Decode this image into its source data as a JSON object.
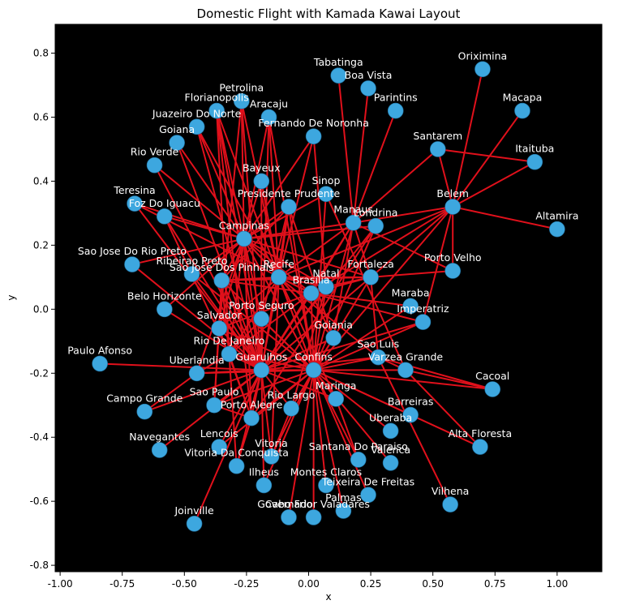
{
  "chart_data": {
    "type": "network",
    "title": "Domestic Flight with Kamada Kawai Layout",
    "xlabel": "x",
    "ylabel": "y",
    "xlim": [
      -1.02,
      1.18
    ],
    "ylim": [
      -0.82,
      0.89
    ],
    "xticks": [
      "-1.00",
      "-0.75",
      "-0.50",
      "-0.25",
      "0.00",
      "0.25",
      "0.50",
      "0.75",
      "1.00"
    ],
    "yticks": [
      "0.8",
      "0.6",
      "0.4",
      "0.2",
      "0.0",
      "-0.2",
      "-0.4",
      "-0.6",
      "-0.8"
    ],
    "xtick_values": [
      -1.0,
      -0.75,
      -0.5,
      -0.25,
      0.0,
      0.25,
      0.5,
      0.75,
      1.0
    ],
    "ytick_values": [
      0.8,
      0.6,
      0.4,
      0.2,
      0.0,
      -0.2,
      -0.4,
      -0.6,
      -0.8
    ],
    "background_color": "#000000",
    "node_color": "#3da7df",
    "edge_color": "#e0101b",
    "label_color": "#ffffff",
    "nodes": [
      {
        "name": "Oriximina",
        "x": 0.7,
        "y": 0.75
      },
      {
        "name": "Tabatinga",
        "x": 0.12,
        "y": 0.73
      },
      {
        "name": "Boa Vista",
        "x": 0.24,
        "y": 0.69
      },
      {
        "name": "Macapa",
        "x": 0.86,
        "y": 0.62
      },
      {
        "name": "Parintins",
        "x": 0.35,
        "y": 0.62
      },
      {
        "name": "Petrolina",
        "x": -0.27,
        "y": 0.65
      },
      {
        "name": "Florianopolis",
        "x": -0.37,
        "y": 0.62
      },
      {
        "name": "Aracaju",
        "x": -0.16,
        "y": 0.6
      },
      {
        "name": "Juazeiro Do Norte",
        "x": -0.45,
        "y": 0.57
      },
      {
        "name": "Fernando De Noronha",
        "x": 0.02,
        "y": 0.54
      },
      {
        "name": "Goiana",
        "x": -0.53,
        "y": 0.52
      },
      {
        "name": "Santarem",
        "x": 0.52,
        "y": 0.5
      },
      {
        "name": "Rio Verde",
        "x": -0.62,
        "y": 0.45
      },
      {
        "name": "Itaituba",
        "x": 0.91,
        "y": 0.46
      },
      {
        "name": "Bayeux",
        "x": -0.19,
        "y": 0.4
      },
      {
        "name": "Sinop",
        "x": 0.07,
        "y": 0.36
      },
      {
        "name": "Teresina",
        "x": -0.7,
        "y": 0.33
      },
      {
        "name": "Belem",
        "x": 0.58,
        "y": 0.32
      },
      {
        "name": "Presidente Prudente",
        "x": -0.08,
        "y": 0.32
      },
      {
        "name": "Foz Do Iguacu",
        "x": -0.58,
        "y": 0.29
      },
      {
        "name": "Manaus",
        "x": 0.18,
        "y": 0.27
      },
      {
        "name": "Londrina",
        "x": 0.27,
        "y": 0.26
      },
      {
        "name": "Altamira",
        "x": 1.0,
        "y": 0.25
      },
      {
        "name": "Campinas",
        "x": -0.26,
        "y": 0.22
      },
      {
        "name": "Sao Jose Do Rio Preto",
        "x": -0.71,
        "y": 0.14
      },
      {
        "name": "Ribeirao Preto",
        "x": -0.47,
        "y": 0.11
      },
      {
        "name": "Porto Velho",
        "x": 0.58,
        "y": 0.12
      },
      {
        "name": "Sao Jose Dos Pinhais",
        "x": -0.35,
        "y": 0.09
      },
      {
        "name": "Recife",
        "x": -0.12,
        "y": 0.1
      },
      {
        "name": "Fortaleza",
        "x": 0.25,
        "y": 0.1
      },
      {
        "name": "Natal",
        "x": 0.07,
        "y": 0.07
      },
      {
        "name": "Brasilia",
        "x": 0.01,
        "y": 0.05
      },
      {
        "name": "Belo Horizonte",
        "x": -0.58,
        "y": 0.0
      },
      {
        "name": "Maraba",
        "x": 0.41,
        "y": 0.01
      },
      {
        "name": "Porto Seguro",
        "x": -0.19,
        "y": -0.03
      },
      {
        "name": "Imperatriz",
        "x": 0.46,
        "y": -0.04
      },
      {
        "name": "Salvador",
        "x": -0.36,
        "y": -0.06
      },
      {
        "name": "Goiania",
        "x": 0.1,
        "y": -0.09
      },
      {
        "name": "Rio De Janeiro",
        "x": -0.32,
        "y": -0.14
      },
      {
        "name": "Sao Luis",
        "x": 0.28,
        "y": -0.15
      },
      {
        "name": "Paulo Afonso",
        "x": -0.84,
        "y": -0.17
      },
      {
        "name": "Guarulhos",
        "x": -0.19,
        "y": -0.19
      },
      {
        "name": "Confins",
        "x": 0.02,
        "y": -0.19
      },
      {
        "name": "Varzea Grande",
        "x": 0.39,
        "y": -0.19
      },
      {
        "name": "Uberlandia",
        "x": -0.45,
        "y": -0.2
      },
      {
        "name": "Cacoal",
        "x": 0.74,
        "y": -0.25
      },
      {
        "name": "Maringa",
        "x": 0.11,
        "y": -0.28
      },
      {
        "name": "Sao Paulo",
        "x": -0.38,
        "y": -0.3
      },
      {
        "name": "Rio Largo",
        "x": -0.07,
        "y": -0.31
      },
      {
        "name": "Campo Grande",
        "x": -0.66,
        "y": -0.32
      },
      {
        "name": "Barreiras",
        "x": 0.41,
        "y": -0.33
      },
      {
        "name": "Porto Alegre",
        "x": -0.23,
        "y": -0.34
      },
      {
        "name": "Uberaba",
        "x": 0.33,
        "y": -0.38
      },
      {
        "name": "Lencois",
        "x": -0.36,
        "y": -0.43
      },
      {
        "name": "Alta Floresta",
        "x": 0.69,
        "y": -0.43
      },
      {
        "name": "Navegantes",
        "x": -0.6,
        "y": -0.44
      },
      {
        "name": "Vitoria",
        "x": -0.15,
        "y": -0.46
      },
      {
        "name": "Santana Do Paraiso",
        "x": 0.2,
        "y": -0.47
      },
      {
        "name": "Valenca",
        "x": 0.33,
        "y": -0.48
      },
      {
        "name": "Vitoria Da Conquista",
        "x": -0.29,
        "y": -0.49
      },
      {
        "name": "Ilheus",
        "x": -0.18,
        "y": -0.55
      },
      {
        "name": "Montes Claros",
        "x": 0.07,
        "y": -0.55
      },
      {
        "name": "Teixeira De Freitas",
        "x": 0.24,
        "y": -0.58
      },
      {
        "name": "Vilhena",
        "x": 0.57,
        "y": -0.61
      },
      {
        "name": "Palmas",
        "x": 0.14,
        "y": -0.63
      },
      {
        "name": "Cabo Frio",
        "x": -0.08,
        "y": -0.65
      },
      {
        "name": "Governador Valadares",
        "x": 0.02,
        "y": -0.65
      },
      {
        "name": "Joinville",
        "x": -0.46,
        "y": -0.67
      }
    ],
    "edges": [
      [
        "Oriximina",
        "Belem"
      ],
      [
        "Macapa",
        "Belem"
      ],
      [
        "Santarem",
        "Itaituba"
      ],
      [
        "Santarem",
        "Belem"
      ],
      [
        "Itaituba",
        "Belem"
      ],
      [
        "Altamira",
        "Belem"
      ],
      [
        "Belem",
        "Manaus"
      ],
      [
        "Belem",
        "Brasilia"
      ],
      [
        "Belem",
        "Fortaleza"
      ],
      [
        "Belem",
        "Imperatriz"
      ],
      [
        "Belem",
        "Porto Velho"
      ],
      [
        "Belem",
        "Confins"
      ],
      [
        "Belem",
        "Recife"
      ],
      [
        "Santarem",
        "Manaus"
      ],
      [
        "Tabatinga",
        "Manaus"
      ],
      [
        "Boa Vista",
        "Manaus"
      ],
      [
        "Parintins",
        "Manaus"
      ],
      [
        "Manaus",
        "Brasilia"
      ],
      [
        "Manaus",
        "Guarulhos"
      ],
      [
        "Manaus",
        "Campinas"
      ],
      [
        "Manaus",
        "Porto Velho"
      ],
      [
        "Manaus",
        "Fortaleza"
      ],
      [
        "Manaus",
        "Recife"
      ],
      [
        "Manaus",
        "Confins"
      ],
      [
        "Manaus",
        "Goiania"
      ],
      [
        "Londrina",
        "Campinas"
      ],
      [
        "Londrina",
        "Guarulhos"
      ],
      [
        "Londrina",
        "Porto Alegre"
      ],
      [
        "Londrina",
        "Confins"
      ],
      [
        "Petrolina",
        "Campinas"
      ],
      [
        "Petrolina",
        "Recife"
      ],
      [
        "Petrolina",
        "Guarulhos"
      ],
      [
        "Petrolina",
        "Salvador"
      ],
      [
        "Florianopolis",
        "Campinas"
      ],
      [
        "Florianopolis",
        "Guarulhos"
      ],
      [
        "Florianopolis",
        "Porto Alegre"
      ],
      [
        "Florianopolis",
        "Rio De Janeiro"
      ],
      [
        "Florianopolis",
        "Confins"
      ],
      [
        "Aracaju",
        "Recife"
      ],
      [
        "Aracaju",
        "Guarulhos"
      ],
      [
        "Aracaju",
        "Campinas"
      ],
      [
        "Aracaju",
        "Confins"
      ],
      [
        "Juazeiro Do Norte",
        "Campinas"
      ],
      [
        "Juazeiro Do Norte",
        "Recife"
      ],
      [
        "Juazeiro Do Norte",
        "Guarulhos"
      ],
      [
        "Fernando De Noronha",
        "Recife"
      ],
      [
        "Fernando De Noronha",
        "Natal"
      ],
      [
        "Fernando De Noronha",
        "Campinas"
      ],
      [
        "Goiana",
        "Campinas"
      ],
      [
        "Goiana",
        "Guarulhos"
      ],
      [
        "Rio Verde",
        "Campinas"
      ],
      [
        "Rio Verde",
        "Guarulhos"
      ],
      [
        "Bayeux",
        "Campinas"
      ],
      [
        "Bayeux",
        "Guarulhos"
      ],
      [
        "Bayeux",
        "Recife"
      ],
      [
        "Sinop",
        "Campinas"
      ],
      [
        "Sinop",
        "Confins"
      ],
      [
        "Sinop",
        "Varzea Grande"
      ],
      [
        "Teresina",
        "Campinas"
      ],
      [
        "Teresina",
        "Guarulhos"
      ],
      [
        "Teresina",
        "Brasilia"
      ],
      [
        "Presidente Prudente",
        "Campinas"
      ],
      [
        "Presidente Prudente",
        "Guarulhos"
      ],
      [
        "Presidente Prudente",
        "Confins"
      ],
      [
        "Presidente Prudente",
        "Recife"
      ],
      [
        "Presidente Prudente",
        "Goiania"
      ],
      [
        "Presidente Prudente",
        "Sao Jose Dos Pinhais"
      ],
      [
        "Presidente Prudente",
        "Porto Seguro"
      ],
      [
        "Foz Do Iguacu",
        "Campinas"
      ],
      [
        "Foz Do Iguacu",
        "Guarulhos"
      ],
      [
        "Foz Do Iguacu",
        "Rio De Janeiro"
      ],
      [
        "Campinas",
        "Sao Jose Do Rio Preto"
      ],
      [
        "Campinas",
        "Ribeirao Preto"
      ],
      [
        "Campinas",
        "Recife"
      ],
      [
        "Campinas",
        "Brasilia"
      ],
      [
        "Campinas",
        "Confins"
      ],
      [
        "Campinas",
        "Salvador"
      ],
      [
        "Campinas",
        "Rio De Janeiro"
      ],
      [
        "Campinas",
        "Porto Alegre"
      ],
      [
        "Campinas",
        "Natal"
      ],
      [
        "Campinas",
        "Fortaleza"
      ],
      [
        "Campinas",
        "Goiania"
      ],
      [
        "Campinas",
        "Belo Horizonte"
      ],
      [
        "Campinas",
        "Uberlandia"
      ],
      [
        "Campinas",
        "Sao Jose Dos Pinhais"
      ],
      [
        "Campinas",
        "Porto Seguro"
      ],
      [
        "Campinas",
        "Guarulhos"
      ],
      [
        "Sao Jose Do Rio Preto",
        "Guarulhos"
      ],
      [
        "Ribeirao Preto",
        "Guarulhos"
      ],
      [
        "Ribeirao Preto",
        "Confins"
      ],
      [
        "Sao Jose Dos Pinhais",
        "Recife"
      ],
      [
        "Sao Jose Dos Pinhais",
        "Fortaleza"
      ],
      [
        "Sao Jose Dos Pinhais",
        "Brasilia"
      ],
      [
        "Sao Jose Dos Pinhais",
        "Confins"
      ],
      [
        "Sao Jose Dos Pinhais",
        "Guarulhos"
      ],
      [
        "Sao Jose Dos Pinhais",
        "Rio De Janeiro"
      ],
      [
        "Sao Jose Dos Pinhais",
        "Salvador"
      ],
      [
        "Sao Jose Dos Pinhais",
        "Sao Paulo"
      ],
      [
        "Recife",
        "Brasilia"
      ],
      [
        "Recife",
        "Confins"
      ],
      [
        "Recife",
        "Guarulhos"
      ],
      [
        "Recife",
        "Natal"
      ],
      [
        "Recife",
        "Fortaleza"
      ],
      [
        "Recife",
        "Salvador"
      ],
      [
        "Recife",
        "Rio De Janeiro"
      ],
      [
        "Recife",
        "Goiania"
      ],
      [
        "Recife",
        "Sao Luis"
      ],
      [
        "Recife",
        "Maringa"
      ],
      [
        "Recife",
        "Vitoria"
      ],
      [
        "Fortaleza",
        "Brasilia"
      ],
      [
        "Fortaleza",
        "Confins"
      ],
      [
        "Fortaleza",
        "Guarulhos"
      ],
      [
        "Fortaleza",
        "Natal"
      ],
      [
        "Fortaleza",
        "Sao Luis"
      ],
      [
        "Fortaleza",
        "Porto Velho"
      ],
      [
        "Natal",
        "Confins"
      ],
      [
        "Natal",
        "Guarulhos"
      ],
      [
        "Natal",
        "Brasilia"
      ],
      [
        "Natal",
        "Rio Largo"
      ],
      [
        "Brasilia",
        "Confins"
      ],
      [
        "Brasilia",
        "Guarulhos"
      ],
      [
        "Brasilia",
        "Goiania"
      ],
      [
        "Brasilia",
        "Maraba"
      ],
      [
        "Brasilia",
        "Imperatriz"
      ],
      [
        "Brasilia",
        "Salvador"
      ],
      [
        "Brasilia",
        "Rio De Janeiro"
      ],
      [
        "Belo Horizonte",
        "Guarulhos"
      ],
      [
        "Maraba",
        "Confins"
      ],
      [
        "Porto Seguro",
        "Guarulhos"
      ],
      [
        "Porto Seguro",
        "Confins"
      ],
      [
        "Porto Seguro",
        "Rio De Janeiro"
      ],
      [
        "Imperatriz",
        "Confins"
      ],
      [
        "Imperatriz",
        "Guarulhos"
      ],
      [
        "Salvador",
        "Guarulhos"
      ],
      [
        "Salvador",
        "Confins"
      ],
      [
        "Salvador",
        "Sao Paulo"
      ],
      [
        "Salvador",
        "Porto Alegre"
      ],
      [
        "Goiania",
        "Confins"
      ],
      [
        "Goiania",
        "Guarulhos"
      ],
      [
        "Rio De Janeiro",
        "Guarulhos"
      ],
      [
        "Rio De Janeiro",
        "Confins"
      ],
      [
        "Rio De Janeiro",
        "Porto Alegre"
      ],
      [
        "Rio De Janeiro",
        "Uberlandia"
      ],
      [
        "Rio De Janeiro",
        "Vitoria Da Conquista"
      ],
      [
        "Sao Luis",
        "Confins"
      ],
      [
        "Sao Luis",
        "Guarulhos"
      ],
      [
        "Sao Luis",
        "Cacoal"
      ],
      [
        "Sao Luis",
        "Vilhena"
      ],
      [
        "Paulo Afonso",
        "Guarulhos"
      ],
      [
        "Guarulhos",
        "Confins"
      ],
      [
        "Guarulhos",
        "Uberlandia"
      ],
      [
        "Guarulhos",
        "Sao Paulo"
      ],
      [
        "Guarulhos",
        "Campo Grande"
      ],
      [
        "Guarulhos",
        "Porto Alegre"
      ],
      [
        "Guarulhos",
        "Navegantes"
      ],
      [
        "Guarulhos",
        "Lencois"
      ],
      [
        "Guarulhos",
        "Vitoria"
      ],
      [
        "Guarulhos",
        "Ilheus"
      ],
      [
        "Guarulhos",
        "Joinville"
      ],
      [
        "Guarulhos",
        "Vitoria Da Conquista"
      ],
      [
        "Guarulhos",
        "Rio Largo"
      ],
      [
        "Guarulhos",
        "Maringa"
      ],
      [
        "Confins",
        "Varzea Grande"
      ],
      [
        "Confins",
        "Maringa"
      ],
      [
        "Confins",
        "Rio Largo"
      ],
      [
        "Confins",
        "Porto Alegre"
      ],
      [
        "Confins",
        "Barreiras"
      ],
      [
        "Confins",
        "Uberaba"
      ],
      [
        "Confins",
        "Santana Do Paraiso"
      ],
      [
        "Confins",
        "Valenca"
      ],
      [
        "Confins",
        "Montes Claros"
      ],
      [
        "Confins",
        "Teixeira De Freitas"
      ],
      [
        "Confins",
        "Palmas"
      ],
      [
        "Confins",
        "Cabo Frio"
      ],
      [
        "Confins",
        "Governador Valadares"
      ],
      [
        "Confins",
        "Vitoria"
      ],
      [
        "Confins",
        "Ilheus"
      ],
      [
        "Confins",
        "Uberlandia"
      ],
      [
        "Confins",
        "Sao Paulo"
      ],
      [
        "Confins",
        "Alta Floresta"
      ],
      [
        "Confins",
        "Cacoal"
      ],
      [
        "Confins",
        "Lencois"
      ],
      [
        "Varzea Grande",
        "Alta Floresta"
      ],
      [
        "Varzea Grande",
        "Cacoal"
      ],
      [
        "Varzea Grande",
        "Sao Luis"
      ],
      [
        "Uberlandia",
        "Campo Grande"
      ],
      [
        "Sao Paulo",
        "Porto Alegre"
      ],
      [
        "Maringa",
        "Santana Do Paraiso"
      ],
      [
        "Rio Largo",
        "Vitoria"
      ],
      [
        "Porto Alegre",
        "Vitoria Da Conquista"
      ]
    ]
  }
}
